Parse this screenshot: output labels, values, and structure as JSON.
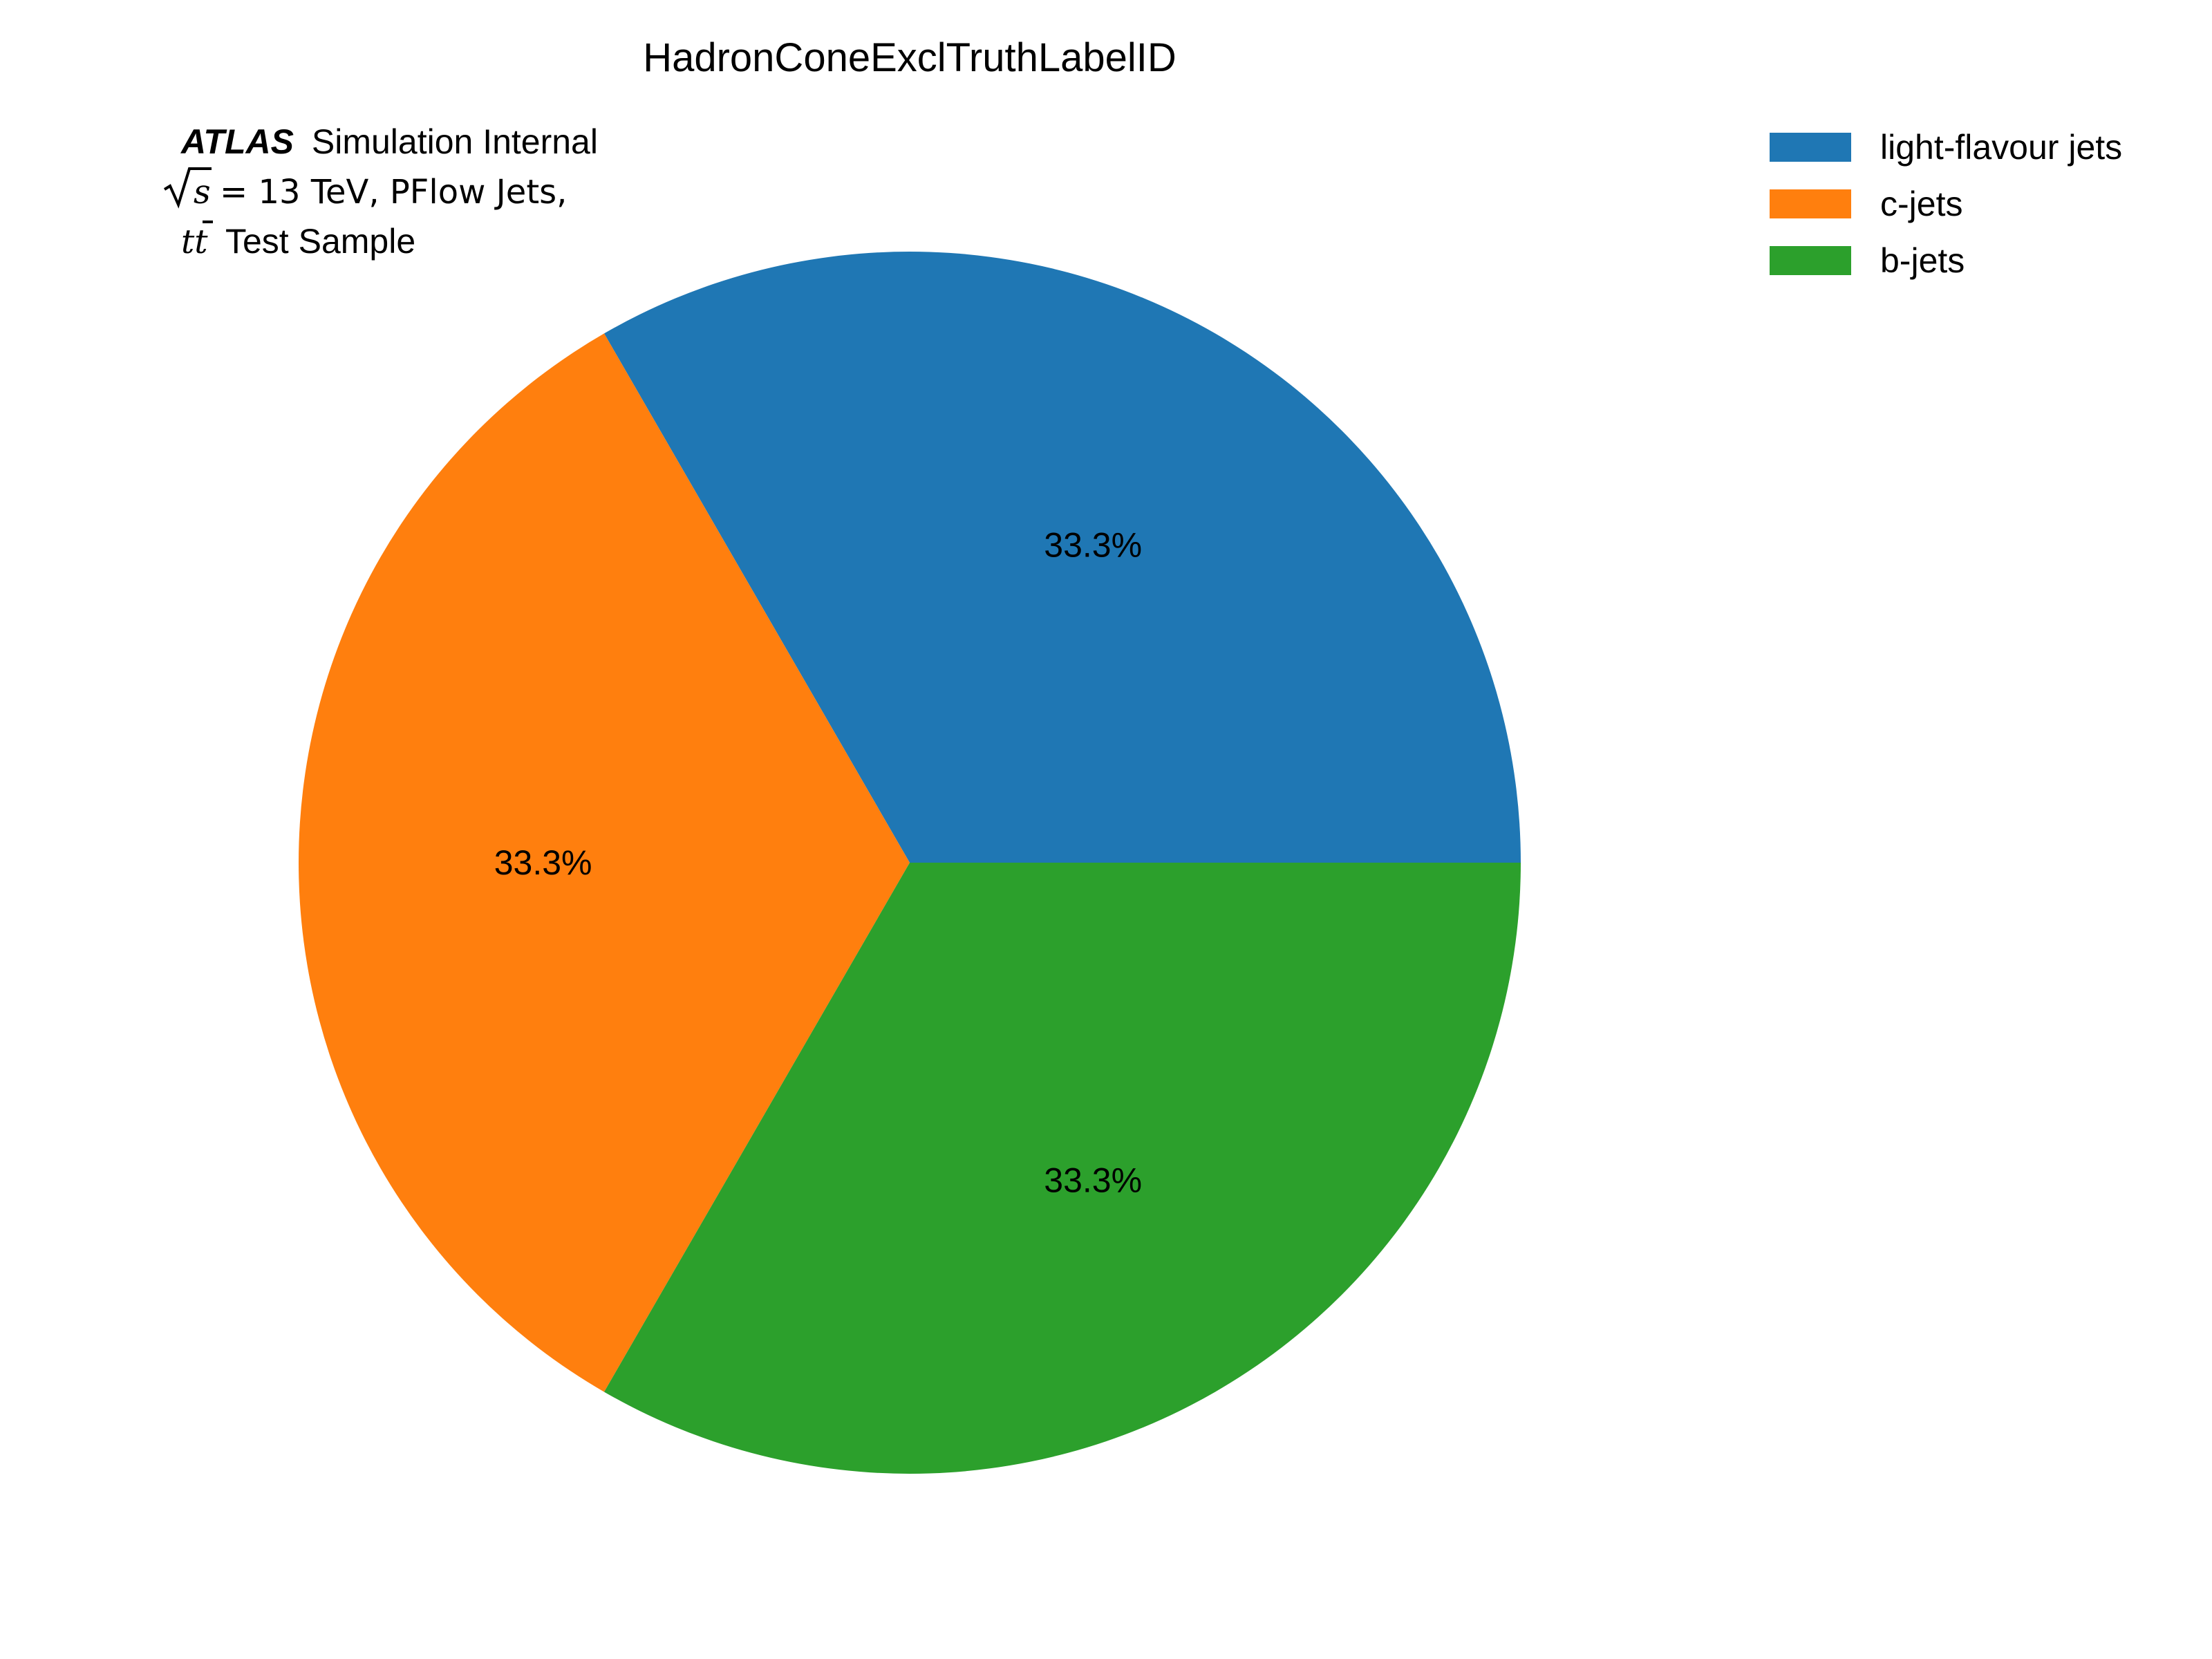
{
  "chart_data": {
    "type": "pie",
    "title": "HadronConeExclTruthLabelID",
    "categories": [
      "light-flavour jets",
      "c-jets",
      "b-jets"
    ],
    "values": [
      33.3,
      33.3,
      33.3
    ],
    "value_labels": [
      "33.3%",
      "33.3%",
      "33.3%"
    ],
    "colors": [
      "#1f77b4",
      "#ff7f0e",
      "#2ca02c"
    ],
    "start_angle_deg": 0,
    "direction": "counterclockwise",
    "legend_position": "top-right",
    "annotation": {
      "experiment": "ATLAS",
      "status": "Simulation Internal",
      "energy_symbol": "s",
      "energy_value": "= 13 TeV, PFlow Jets,",
      "sample_symbol": "tt",
      "sample_text": "Test Sample"
    }
  }
}
